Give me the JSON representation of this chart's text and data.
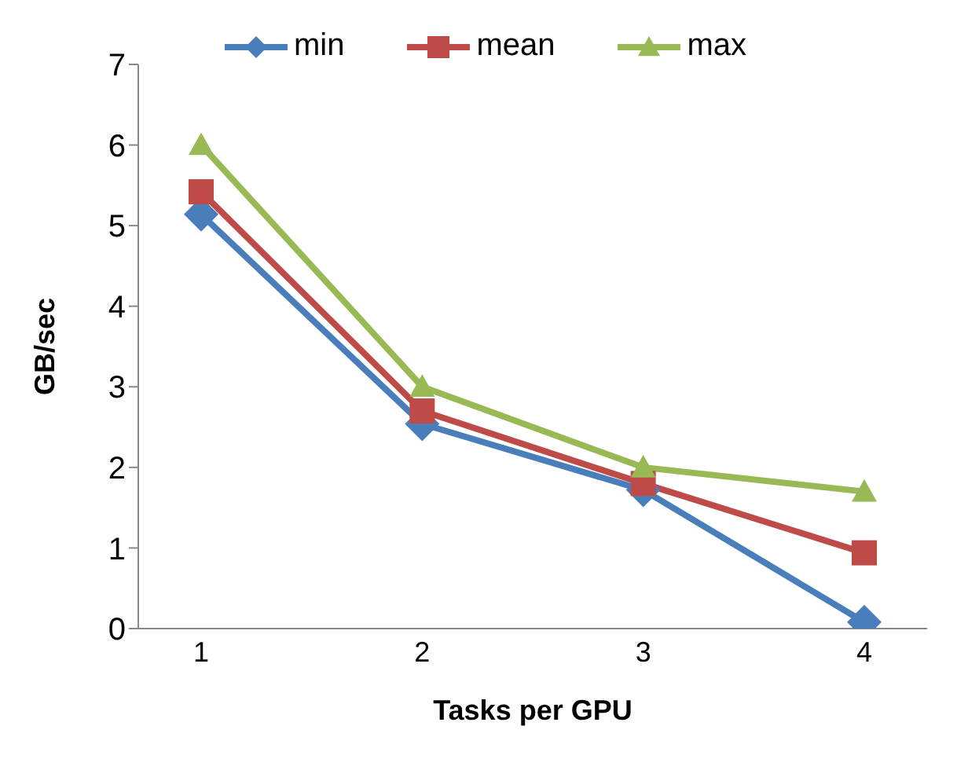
{
  "chart_data": {
    "type": "line",
    "xlabel": "Tasks per GPU",
    "ylabel": "GB/sec",
    "categories": [
      "1",
      "2",
      "3",
      "4"
    ],
    "series": [
      {
        "name": "min",
        "color": "#4a7ebb",
        "marker": "diamond",
        "values": [
          5.14,
          2.54,
          1.72,
          0.08
        ]
      },
      {
        "name": "mean",
        "color": "#be4b48",
        "marker": "square",
        "values": [
          5.42,
          2.7,
          1.8,
          0.94
        ]
      },
      {
        "name": "max",
        "color": "#98b954",
        "marker": "triangle",
        "values": [
          6.0,
          3.0,
          2.0,
          1.7
        ]
      }
    ],
    "ylim": [
      0,
      7
    ],
    "yticks": [
      0,
      1,
      2,
      3,
      4,
      5,
      6,
      7
    ],
    "grid": false,
    "legend": "top"
  }
}
